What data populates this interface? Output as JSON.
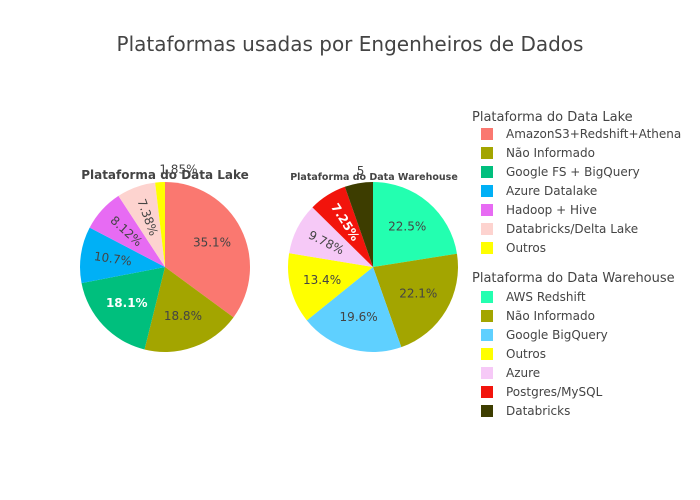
{
  "chart_data": [
    {
      "type": "pie",
      "title": "Plataformas usadas por Engenheiros de Dados",
      "subtitle": "Plataforma do Data Lake",
      "legend_title": "Plataforma do Data Lake",
      "legend_position": "right",
      "slices": [
        {
          "label": "AmazonS3+Redshift+Athena",
          "value": 35.1,
          "text": "35.1%",
          "color": "#FA7870"
        },
        {
          "label": "Não Informado",
          "value": 18.8,
          "text": "18.8%",
          "color": "#A3A500"
        },
        {
          "label": "Google FS + BigQuery",
          "value": 18.1,
          "text": "18.1%",
          "color": "#00BF7D"
        },
        {
          "label": "Azure Datalake",
          "value": 10.7,
          "text": "10.7%",
          "color": "#00B0F6"
        },
        {
          "label": "Hadoop + Hive",
          "value": 8.12,
          "text": "8.12%",
          "color": "#E76BF3"
        },
        {
          "label": "Databricks/Delta Lake",
          "value": 7.38,
          "text": "7.38%",
          "color": "#FDD3CF"
        },
        {
          "label": "Outros",
          "value": 1.85,
          "text": "1.85%",
          "color": "#FFFF00"
        }
      ]
    },
    {
      "type": "pie",
      "subtitle": "Plataforma do Data Warehouse",
      "legend_title": "Plataforma do Data Warehouse",
      "legend_position": "right",
      "slices": [
        {
          "label": "AWS Redshift",
          "value": 22.5,
          "text": "22.5%",
          "color": "#23FFB0"
        },
        {
          "label": "Não Informado",
          "value": 22.1,
          "text": "22.1%",
          "color": "#A3A500"
        },
        {
          "label": "Google BigQuery",
          "value": 19.6,
          "text": "19.6%",
          "color": "#5FD0FF"
        },
        {
          "label": "Outros",
          "value": 13.4,
          "text": "13.4%",
          "color": "#FFFF00"
        },
        {
          "label": "Azure",
          "value": 9.78,
          "text": "9.78%",
          "color": "#F6C9F7"
        },
        {
          "label": "Postgres/MySQL",
          "value": 7.25,
          "text": "7.25%",
          "color": "#F2140C"
        },
        {
          "label": "Databricks",
          "value": 5.37,
          "text": "5",
          "color": "#3D3D00"
        }
      ]
    }
  ]
}
